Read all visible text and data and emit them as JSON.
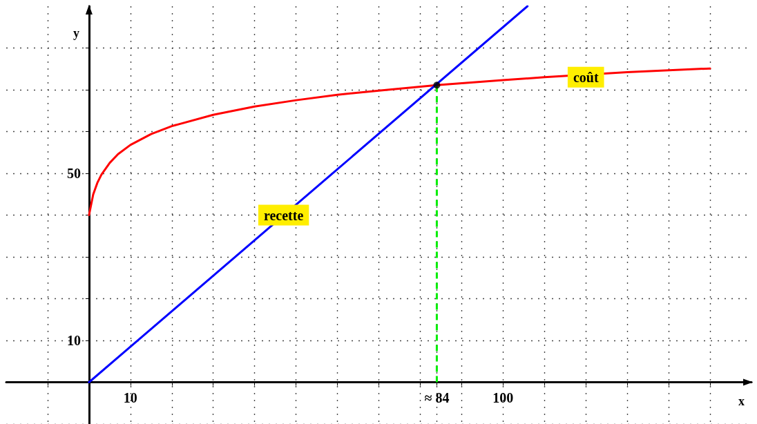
{
  "chart_data": {
    "type": "line",
    "xlabel": "x",
    "ylabel": "y",
    "xlim": [
      -20,
      160
    ],
    "ylim": [
      -10,
      90
    ],
    "xticks": [
      {
        "value": -10,
        "label": null
      },
      {
        "value": 0,
        "label": null
      },
      10,
      {
        "value": 20,
        "label": null
      },
      {
        "value": 30,
        "label": null
      },
      {
        "value": 40,
        "label": null
      },
      {
        "value": 50,
        "label": null
      },
      {
        "value": 60,
        "label": null
      },
      {
        "value": 70,
        "label": null
      },
      {
        "value": 80,
        "label": null
      },
      {
        "value": 84,
        "label": "≈ 84"
      },
      {
        "value": 90,
        "label": null
      },
      100,
      {
        "value": 110,
        "label": null
      },
      {
        "value": 120,
        "label": null
      },
      {
        "value": 130,
        "label": null
      },
      {
        "value": 140,
        "label": null
      },
      {
        "value": 150,
        "label": null
      }
    ],
    "yticks": [
      {
        "value": -10,
        "label": null
      },
      {
        "value": 0,
        "label": null
      },
      10,
      {
        "value": 20,
        "label": null
      },
      {
        "value": 30,
        "label": null
      },
      {
        "value": 40,
        "label": null
      },
      50,
      {
        "value": 60,
        "label": null
      },
      {
        "value": 70,
        "label": null
      },
      {
        "value": 80,
        "label": null
      }
    ],
    "grid": true,
    "marker": "none",
    "line_style": "solid",
    "series": [
      {
        "color": "#ff0000",
        "x": [
          0,
          1,
          2,
          3,
          5,
          7,
          10,
          15,
          20,
          30,
          40,
          50,
          60,
          70,
          84,
          100,
          110,
          130,
          150
        ],
        "values": [
          40,
          44.9,
          47.7,
          49.7,
          52.5,
          54.6,
          56.8,
          59.4,
          61.3,
          64.0,
          66.0,
          67.5,
          68.8,
          69.8,
          71.1,
          72.3,
          73.0,
          74.2,
          75.1
        ]
      },
      {
        "color": "#0000ff",
        "x": [
          0,
          105.9
        ],
        "values": [
          0,
          90
        ]
      },
      {
        "type": "scatter",
        "marker": "circle",
        "color": "#000000",
        "x": [
          84
        ],
        "values": [
          71.1
        ]
      }
    ],
    "ref_lines": [
      {
        "axis": "x",
        "value": 84,
        "color": "#00ee00",
        "line_style": "dashed"
      }
    ],
    "annotations": [
      {
        "text": "recette",
        "x": 47,
        "y": 40
      },
      {
        "text": "coût",
        "x": 120,
        "y": 73
      }
    ]
  }
}
